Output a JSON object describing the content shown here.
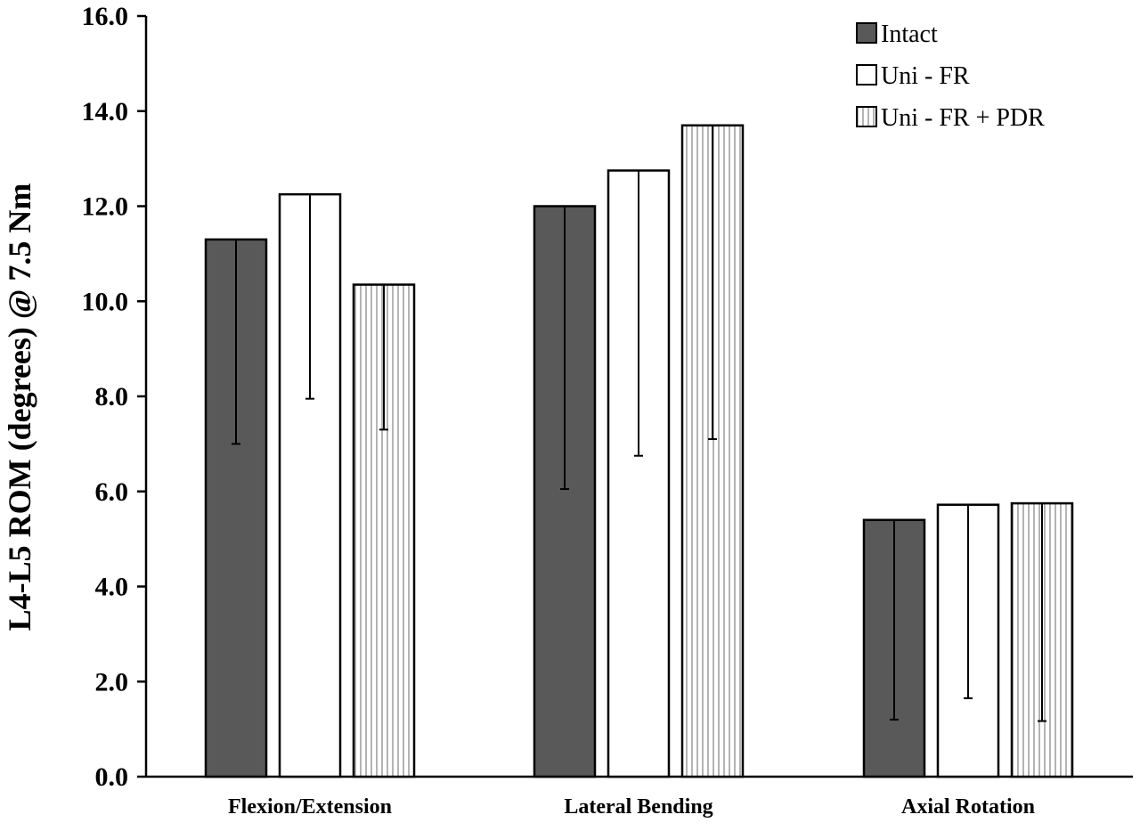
{
  "chart_data": {
    "type": "bar",
    "title": "",
    "xlabel": "",
    "ylabel": "L4-L5 ROM (degrees) @ 7.5 Nm",
    "ylim": [
      0,
      16
    ],
    "y_ticks": [
      0,
      2,
      4,
      6,
      8,
      10,
      12,
      14,
      16
    ],
    "y_tick_labels": [
      "0.0",
      "2.0",
      "4.0",
      "6.0",
      "8.0",
      "10.0",
      "12.0",
      "14.0",
      "16.0"
    ],
    "categories": [
      "Flexion/Extension",
      "Lateral Bending",
      "Axial Rotation"
    ],
    "grid": false,
    "legend_position": "top-right",
    "series": [
      {
        "name": "Intact",
        "fill": "solid",
        "color": "#595959",
        "values": [
          11.3,
          12.0,
          5.4
        ],
        "error_low": [
          7.0,
          6.05,
          1.2
        ]
      },
      {
        "name": "Uni - FR",
        "fill": "white",
        "color": "#ffffff",
        "values": [
          12.25,
          12.75,
          5.72
        ],
        "error_low": [
          7.95,
          6.75,
          1.65
        ]
      },
      {
        "name": "Uni - FR + PDR",
        "fill": "vertical-hatch",
        "color": "#ffffff",
        "values": [
          10.35,
          13.7,
          5.75
        ],
        "error_low": [
          7.3,
          7.1,
          1.17
        ]
      }
    ]
  }
}
